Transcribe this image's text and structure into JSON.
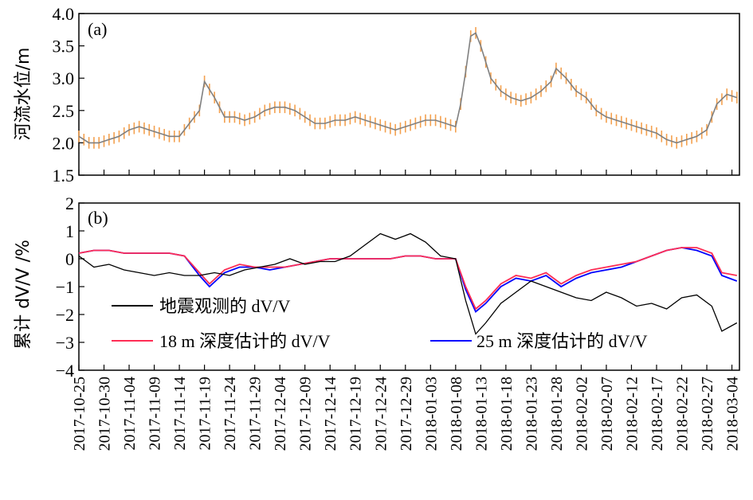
{
  "chart_data": [
    {
      "panel_label": "(a)",
      "type": "line",
      "ylabel": "河流水位/m",
      "ylim": [
        1.5,
        4.0
      ],
      "yticks": [
        "1.5",
        "2.0",
        "2.5",
        "3.0",
        "3.5",
        "4.0"
      ],
      "series": [
        {
          "color": "#808080",
          "bar_color": "#f4a14f",
          "x": [
            "2017-10-25",
            "2017-10-27",
            "2017-10-29",
            "2017-10-31",
            "2017-11-02",
            "2017-11-04",
            "2017-11-06",
            "2017-11-08",
            "2017-11-10",
            "2017-11-12",
            "2017-11-14",
            "2017-11-16",
            "2017-11-18",
            "2017-11-19",
            "2017-11-21",
            "2017-11-23",
            "2017-11-25",
            "2017-11-27",
            "2017-11-29",
            "2017-12-01",
            "2017-12-03",
            "2017-12-05",
            "2017-12-07",
            "2017-12-09",
            "2017-12-11",
            "2017-12-13",
            "2017-12-15",
            "2017-12-17",
            "2017-12-19",
            "2017-12-21",
            "2017-12-23",
            "2017-12-25",
            "2017-12-27",
            "2017-12-29",
            "2017-12-31",
            "2018-01-02",
            "2018-01-04",
            "2018-01-06",
            "2018-01-08",
            "2018-01-09",
            "2018-01-10",
            "2018-01-11",
            "2018-01-12",
            "2018-01-13",
            "2018-01-15",
            "2018-01-17",
            "2018-01-19",
            "2018-01-21",
            "2018-01-23",
            "2018-01-25",
            "2018-01-27",
            "2018-01-28",
            "2018-01-30",
            "2018-02-01",
            "2018-02-03",
            "2018-02-05",
            "2018-02-07",
            "2018-02-09",
            "2018-02-11",
            "2018-02-13",
            "2018-02-15",
            "2018-02-17",
            "2018-02-19",
            "2018-02-21",
            "2018-02-23",
            "2018-02-25",
            "2018-02-27",
            "2018-03-01",
            "2018-03-03",
            "2018-03-05"
          ],
          "values": [
            2.1,
            2.0,
            2.0,
            2.05,
            2.1,
            2.2,
            2.25,
            2.2,
            2.15,
            2.1,
            2.1,
            2.3,
            2.5,
            2.95,
            2.7,
            2.4,
            2.4,
            2.35,
            2.4,
            2.5,
            2.55,
            2.55,
            2.5,
            2.4,
            2.3,
            2.3,
            2.35,
            2.35,
            2.4,
            2.35,
            2.3,
            2.25,
            2.2,
            2.25,
            2.3,
            2.35,
            2.35,
            2.3,
            2.25,
            2.6,
            3.1,
            3.65,
            3.7,
            3.5,
            3.0,
            2.8,
            2.7,
            2.65,
            2.7,
            2.8,
            2.95,
            3.15,
            3.0,
            2.8,
            2.7,
            2.5,
            2.4,
            2.35,
            2.3,
            2.25,
            2.2,
            2.15,
            2.05,
            2.0,
            2.05,
            2.1,
            2.2,
            2.6,
            2.75,
            2.7
          ]
        }
      ]
    },
    {
      "panel_label": "(b)",
      "type": "line",
      "ylabel": "累计 dV/V /%",
      "ylim": [
        -4,
        2
      ],
      "yticks": [
        "−4",
        "−3",
        "−2",
        "−1",
        "0",
        "1",
        "2"
      ],
      "xticks": [
        "2017-10-25",
        "2017-10-30",
        "2017-11-04",
        "2017-11-09",
        "2017-11-14",
        "2017-11-19",
        "2017-11-24",
        "2017-11-29",
        "2017-12-04",
        "2017-12-09",
        "2017-12-14",
        "2017-12-19",
        "2017-12-24",
        "2017-12-29",
        "2018-01-03",
        "2018-01-08",
        "2018-01-13",
        "2018-01-18",
        "2018-01-23",
        "2018-01-28",
        "2018-02-02",
        "2018-02-07",
        "2018-02-12",
        "2018-02-17",
        "2018-02-22",
        "2018-02-27",
        "2018-03-04"
      ],
      "legend": [
        {
          "label": "地震观测的 dV/V",
          "color": "#000000"
        },
        {
          "label": "18 m 深度估计的 dV/V",
          "color": "#ff2d55"
        },
        {
          "label": "25 m 深度估计的 dV/V",
          "color": "#0000ff"
        }
      ],
      "series": [
        {
          "name": "地震观测的 dV/V",
          "color": "#000000",
          "x": [
            "2017-10-25",
            "2017-10-28",
            "2017-10-31",
            "2017-11-03",
            "2017-11-06",
            "2017-11-09",
            "2017-11-12",
            "2017-11-15",
            "2017-11-18",
            "2017-11-21",
            "2017-11-24",
            "2017-11-27",
            "2017-11-30",
            "2017-12-03",
            "2017-12-06",
            "2017-12-09",
            "2017-12-12",
            "2017-12-15",
            "2017-12-18",
            "2017-12-21",
            "2017-12-24",
            "2017-12-27",
            "2017-12-30",
            "2018-01-02",
            "2018-01-05",
            "2018-01-08",
            "2018-01-10",
            "2018-01-12",
            "2018-01-14",
            "2018-01-17",
            "2018-01-20",
            "2018-01-23",
            "2018-01-26",
            "2018-01-29",
            "2018-02-01",
            "2018-02-04",
            "2018-02-07",
            "2018-02-10",
            "2018-02-13",
            "2018-02-16",
            "2018-02-19",
            "2018-02-22",
            "2018-02-25",
            "2018-02-28",
            "2018-03-02",
            "2018-03-05"
          ],
          "values": [
            0.1,
            -0.3,
            -0.2,
            -0.4,
            -0.5,
            -0.6,
            -0.5,
            -0.6,
            -0.6,
            -0.5,
            -0.6,
            -0.4,
            -0.3,
            -0.2,
            0.0,
            -0.2,
            -0.1,
            -0.1,
            0.1,
            0.5,
            0.9,
            0.7,
            0.9,
            0.6,
            0.1,
            0.0,
            -1.5,
            -2.7,
            -2.3,
            -1.6,
            -1.2,
            -0.8,
            -1.0,
            -1.2,
            -1.4,
            -1.5,
            -1.2,
            -1.4,
            -1.7,
            -1.6,
            -1.8,
            -1.4,
            -1.3,
            -1.7,
            -2.6,
            -2.3
          ]
        },
        {
          "name": "18 m 深度估计的 dV/V",
          "color": "#ff2d55",
          "x": [
            "2017-10-25",
            "2017-10-28",
            "2017-10-31",
            "2017-11-03",
            "2017-11-06",
            "2017-11-09",
            "2017-11-12",
            "2017-11-15",
            "2017-11-18",
            "2017-11-20",
            "2017-11-23",
            "2017-11-26",
            "2017-11-29",
            "2017-12-02",
            "2017-12-05",
            "2017-12-08",
            "2017-12-11",
            "2017-12-14",
            "2017-12-17",
            "2017-12-20",
            "2017-12-23",
            "2017-12-26",
            "2017-12-29",
            "2018-01-01",
            "2018-01-04",
            "2018-01-08",
            "2018-01-10",
            "2018-01-12",
            "2018-01-14",
            "2018-01-17",
            "2018-01-20",
            "2018-01-23",
            "2018-01-26",
            "2018-01-29",
            "2018-02-01",
            "2018-02-04",
            "2018-02-07",
            "2018-02-10",
            "2018-02-13",
            "2018-02-16",
            "2018-02-19",
            "2018-02-22",
            "2018-02-25",
            "2018-02-28",
            "2018-03-02",
            "2018-03-05"
          ],
          "values": [
            0.2,
            0.3,
            0.3,
            0.2,
            0.2,
            0.2,
            0.2,
            0.1,
            -0.5,
            -0.9,
            -0.4,
            -0.2,
            -0.3,
            -0.3,
            -0.3,
            -0.2,
            -0.1,
            0.0,
            0.0,
            0.0,
            0.0,
            0.0,
            0.1,
            0.1,
            0.0,
            0.0,
            -1.0,
            -1.8,
            -1.5,
            -0.9,
            -0.6,
            -0.7,
            -0.5,
            -0.9,
            -0.6,
            -0.4,
            -0.3,
            -0.2,
            -0.1,
            0.1,
            0.3,
            0.4,
            0.4,
            0.2,
            -0.5,
            -0.6
          ]
        },
        {
          "name": "25 m 深度估计的 dV/V",
          "color": "#0000ff",
          "x": [
            "2017-10-25",
            "2017-10-28",
            "2017-10-31",
            "2017-11-03",
            "2017-11-06",
            "2017-11-09",
            "2017-11-12",
            "2017-11-15",
            "2017-11-18",
            "2017-11-20",
            "2017-11-23",
            "2017-11-26",
            "2017-11-29",
            "2017-12-02",
            "2017-12-05",
            "2017-12-08",
            "2017-12-11",
            "2017-12-14",
            "2017-12-17",
            "2017-12-20",
            "2017-12-23",
            "2017-12-26",
            "2017-12-29",
            "2018-01-01",
            "2018-01-04",
            "2018-01-08",
            "2018-01-10",
            "2018-01-12",
            "2018-01-14",
            "2018-01-17",
            "2018-01-20",
            "2018-01-23",
            "2018-01-26",
            "2018-01-29",
            "2018-02-01",
            "2018-02-04",
            "2018-02-07",
            "2018-02-10",
            "2018-02-13",
            "2018-02-16",
            "2018-02-19",
            "2018-02-22",
            "2018-02-25",
            "2018-02-28",
            "2018-03-02",
            "2018-03-05"
          ],
          "values": [
            0.2,
            0.3,
            0.3,
            0.2,
            0.2,
            0.2,
            0.2,
            0.1,
            -0.6,
            -1.0,
            -0.5,
            -0.3,
            -0.3,
            -0.4,
            -0.3,
            -0.2,
            -0.1,
            0.0,
            0.0,
            0.0,
            0.0,
            0.0,
            0.1,
            0.1,
            0.0,
            0.0,
            -1.1,
            -1.9,
            -1.6,
            -1.0,
            -0.7,
            -0.8,
            -0.6,
            -1.0,
            -0.7,
            -0.5,
            -0.4,
            -0.3,
            -0.1,
            0.1,
            0.3,
            0.4,
            0.3,
            0.1,
            -0.6,
            -0.8
          ]
        }
      ]
    }
  ]
}
